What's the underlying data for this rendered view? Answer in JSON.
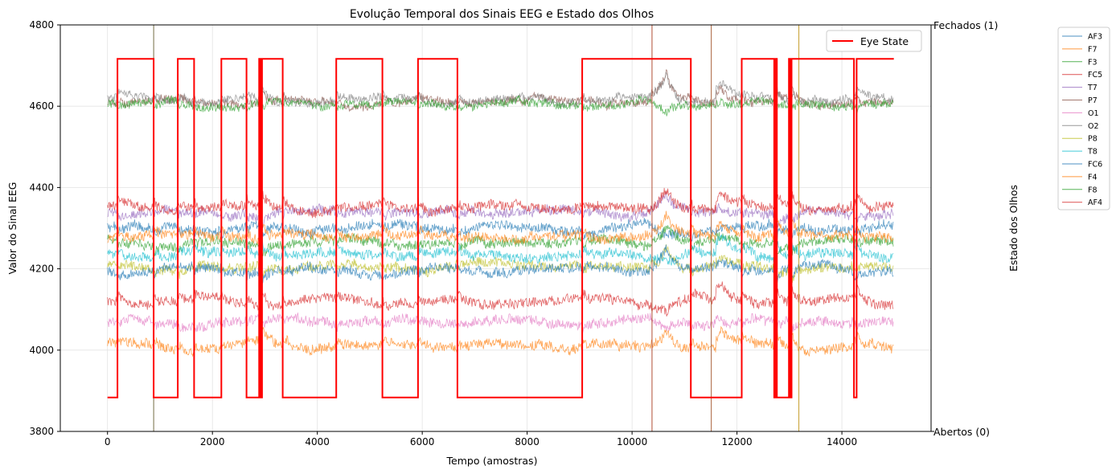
{
  "chart_data": {
    "type": "line",
    "title": "Evolução Temporal dos Sinais EEG e Estado dos Olhos",
    "xlabel": "Tempo (amostras)",
    "ylabel": "Valor do Sinal EEG",
    "y2label": "Estado dos Olhos",
    "xlim": [
      -900,
      15700
    ],
    "ylim": [
      3800,
      4800
    ],
    "x_ticks": [
      0,
      2000,
      4000,
      6000,
      8000,
      10000,
      12000,
      14000
    ],
    "x_tick_labels": [
      "0",
      "2000",
      "4000",
      "6000",
      "8000",
      "10000",
      "12000",
      "14000"
    ],
    "y_ticks": [
      3800,
      4000,
      4200,
      4400,
      4600,
      4800
    ],
    "y_tick_labels": [
      "3800",
      "4000",
      "4200",
      "4400",
      "4600",
      "4800"
    ],
    "y2_ticks": [
      0,
      1
    ],
    "y2_tick_labels": [
      "Abertos (0)",
      "Fechados (1)"
    ],
    "grid": true,
    "legend_eye_position": "upper-right-inside",
    "legend_channels_position": "outside-right",
    "eye_state": {
      "name": "Eye State",
      "color": "#ff0000",
      "y2lim": [
        -0.1,
        1.1
      ],
      "transitions_x": [
        0,
        190,
        880,
        1340,
        1650,
        2170,
        2650,
        2890,
        2920,
        2945,
        3340,
        4360,
        5240,
        5920,
        6670,
        9050,
        11120,
        12090,
        12710,
        12740,
        12760,
        12990,
        13020,
        13040,
        14230,
        14280,
        14990
      ],
      "states": [
        0,
        1,
        0,
        1,
        0,
        1,
        0,
        1,
        0,
        1,
        0,
        1,
        0,
        1,
        0,
        1,
        0,
        1,
        0,
        1,
        0,
        1,
        0,
        1,
        0,
        1,
        1
      ]
    },
    "series": [
      {
        "name": "AF3",
        "color": "#1f77b4",
        "base": 4300
      },
      {
        "name": "F7",
        "color": "#ff7f0e",
        "base": 4010
      },
      {
        "name": "F3",
        "color": "#2ca02c",
        "base": 4265
      },
      {
        "name": "FC5",
        "color": "#d62728",
        "base": 4120
      },
      {
        "name": "T7",
        "color": "#9467bd",
        "base": 4340
      },
      {
        "name": "P7",
        "color": "#8c564b",
        "base": 4610
      },
      {
        "name": "O1",
        "color": "#e377c2",
        "base": 4070
      },
      {
        "name": "O2",
        "color": "#7f7f7f",
        "base": 4615
      },
      {
        "name": "P8",
        "color": "#bcbd22",
        "base": 4205
      },
      {
        "name": "T8",
        "color": "#17becf",
        "base": 4235
      },
      {
        "name": "FC6",
        "color": "#1f77b4",
        "base": 4200
      },
      {
        "name": "F4",
        "color": "#ff7f0e",
        "base": 4280
      },
      {
        "name": "F8",
        "color": "#2ca02c",
        "base": 4605
      },
      {
        "name": "AF4",
        "color": "#d62728",
        "base": 4350
      }
    ]
  }
}
